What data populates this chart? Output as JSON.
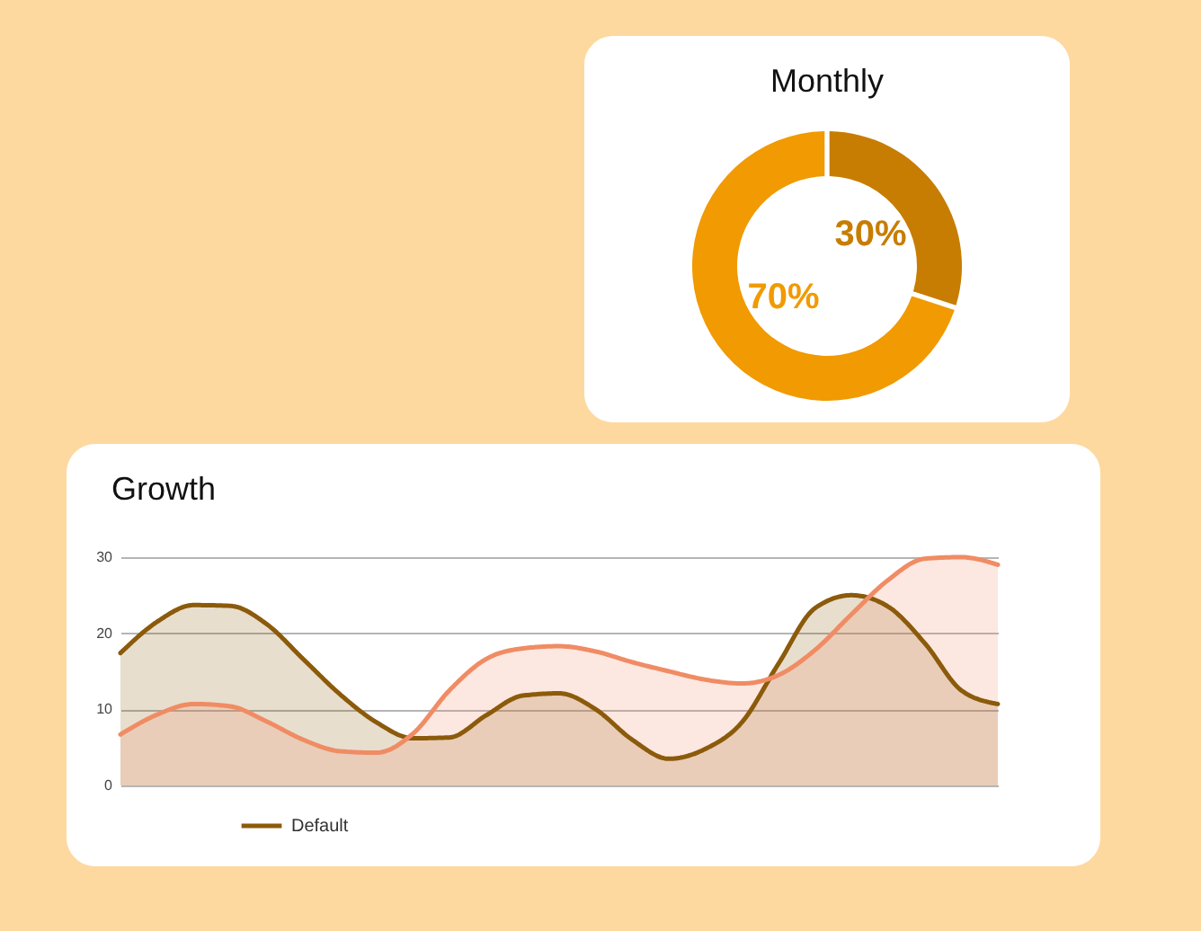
{
  "chart_data": [
    {
      "type": "donut",
      "title": "Monthly",
      "categories": [
        null,
        null
      ],
      "values": [
        30,
        70
      ],
      "colors": [
        "#c77d02",
        "#f19a02"
      ],
      "value_labels": [
        "30%",
        "70%"
      ]
    },
    {
      "type": "area",
      "title": "Growth",
      "categories": [
        null,
        null,
        null,
        null,
        null,
        null,
        null,
        null,
        null,
        null,
        null,
        null,
        null,
        null,
        null,
        null,
        null,
        null,
        null,
        null,
        null,
        null,
        null,
        null,
        null
      ],
      "series": [
        {
          "name": "Default",
          "color": "#8b5a0b",
          "values": [
            17.4,
            21.5,
            23.7,
            23.6,
            21.2,
            16.6,
            12.0,
            8.3,
            6.2,
            6.3,
            9.2,
            11.8,
            12.1,
            10.0,
            6.0,
            3.5,
            4.8,
            8.3,
            16.0,
            23.3,
            25.0,
            23.5,
            18.7,
            12.5,
            10.7
          ]
        },
        {
          "color": "#f08c64",
          "values": [
            6.7,
            9.3,
            10.7,
            10.4,
            8.4,
            6.0,
            4.5,
            4.3,
            6.8,
            12.5,
            16.6,
            18.0,
            18.3,
            17.6,
            16.2,
            15.0,
            13.9,
            13.4,
            14.5,
            17.8,
            22.5,
            27.0,
            29.8,
            30,
            29.0
          ]
        }
      ],
      "ylim": [
        0,
        30
      ],
      "yticks": [
        0,
        10,
        20,
        30
      ],
      "grid": "y",
      "legend": "bottom",
      "tick_labels": "y"
    }
  ]
}
